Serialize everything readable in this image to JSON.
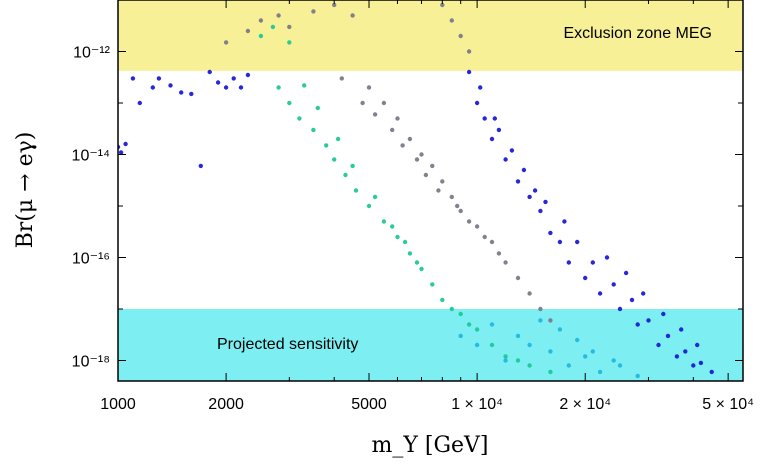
{
  "chart_data": {
    "type": "scatter",
    "x_scale": "log",
    "y_scale": "log",
    "xlim": [
      1000,
      55000
    ],
    "ylim": [
      4e-19,
      1e-11
    ],
    "xlabel": "m_Y [GeV]",
    "ylabel": "Br(μ → eγ)",
    "x_ticks": [
      {
        "value": 1000,
        "label": "1000"
      },
      {
        "value": 2000,
        "label": "2000"
      },
      {
        "value": 5000,
        "label": "5000"
      },
      {
        "value": 10000,
        "label": "1 × 10⁴"
      },
      {
        "value": 20000,
        "label": "2 × 10⁴"
      },
      {
        "value": 50000,
        "label": "5 × 10⁴"
      }
    ],
    "y_ticks": [
      {
        "value": 1e-12,
        "label": "10⁻¹²"
      },
      {
        "value": 1e-14,
        "label": "10⁻¹⁴"
      },
      {
        "value": 1e-16,
        "label": "10⁻¹⁶"
      },
      {
        "value": 1e-18,
        "label": "10⁻¹⁸"
      }
    ],
    "bands": [
      {
        "label": "Exclusion zone MEG",
        "ymin": 4.2e-13,
        "ymax": 1e-11,
        "color": "#f0e442",
        "opacity": 0.55
      },
      {
        "label": "Projected sensitivity",
        "ymin": 4e-19,
        "ymax": 1e-17,
        "color": "#26e2e8",
        "opacity": 0.6
      }
    ],
    "series": [
      {
        "color": "#1c1cd6",
        "points": [
          [
            1000,
            1.4e-14
          ],
          [
            1020,
            1.1e-14
          ],
          [
            1050,
            1.6e-14
          ],
          [
            1100,
            3e-13
          ],
          [
            1150,
            1e-13
          ],
          [
            1250,
            2e-13
          ],
          [
            1300,
            3e-13
          ],
          [
            1400,
            2.2e-13
          ],
          [
            1500,
            1.6e-13
          ],
          [
            1600,
            1.5e-13
          ],
          [
            1700,
            6e-15
          ],
          [
            1800,
            4e-13
          ],
          [
            1900,
            2.5e-13
          ],
          [
            2000,
            2e-13
          ],
          [
            2100,
            3e-13
          ],
          [
            2200,
            2e-13
          ],
          [
            2300,
            3.5e-13
          ],
          [
            9500,
            4e-13
          ],
          [
            10000,
            1e-13
          ],
          [
            10500,
            5e-14
          ],
          [
            11000,
            2e-14
          ],
          [
            12000,
            8e-15
          ],
          [
            13000,
            3e-15
          ],
          [
            14000,
            1.5e-15
          ],
          [
            15000,
            8e-16
          ],
          [
            16000,
            3e-16
          ],
          [
            17000,
            2e-16
          ],
          [
            18000,
            8e-17
          ],
          [
            20000,
            4e-17
          ],
          [
            22000,
            2e-17
          ],
          [
            25000,
            1e-17
          ],
          [
            28000,
            5e-18
          ],
          [
            32000,
            2e-18
          ],
          [
            36000,
            1.2e-18
          ],
          [
            40000,
            8e-19
          ],
          [
            45000,
            6e-19
          ],
          [
            11500,
            3e-14
          ],
          [
            12500,
            1.2e-14
          ],
          [
            13500,
            5e-15
          ],
          [
            15500,
            1.2e-15
          ],
          [
            19000,
            2e-16
          ],
          [
            21000,
            8e-17
          ],
          [
            24000,
            3e-17
          ],
          [
            27000,
            1.5e-17
          ],
          [
            30000,
            6e-18
          ],
          [
            34000,
            3e-18
          ],
          [
            38000,
            1.5e-18
          ],
          [
            42000,
            9e-19
          ],
          [
            10200,
            2e-13
          ],
          [
            11200,
            5e-14
          ],
          [
            14500,
            2e-15
          ],
          [
            17500,
            5e-16
          ],
          [
            23000,
            1e-16
          ],
          [
            26000,
            5e-17
          ],
          [
            29000,
            2e-17
          ],
          [
            33000,
            8e-18
          ],
          [
            37000,
            4e-18
          ],
          [
            41000,
            2e-18
          ]
        ]
      },
      {
        "color": "#7a7a8a",
        "points": [
          [
            2000,
            1.5e-12
          ],
          [
            2300,
            2.5e-12
          ],
          [
            2500,
            4e-12
          ],
          [
            2800,
            5e-12
          ],
          [
            3000,
            3e-12
          ],
          [
            3500,
            6e-12
          ],
          [
            4000,
            8e-12
          ],
          [
            4500,
            5e-12
          ],
          [
            5000,
            2e-13
          ],
          [
            5500,
            1e-13
          ],
          [
            6000,
            5e-14
          ],
          [
            6500,
            2e-14
          ],
          [
            7000,
            1e-14
          ],
          [
            7500,
            6e-15
          ],
          [
            8000,
            3e-15
          ],
          [
            8500,
            1.5e-15
          ],
          [
            9000,
            8e-16
          ],
          [
            10000,
            4e-16
          ],
          [
            11000,
            2e-16
          ],
          [
            12000,
            8e-17
          ],
          [
            13000,
            4e-17
          ],
          [
            14000,
            2e-17
          ],
          [
            15000,
            1e-17
          ],
          [
            16000,
            6e-18
          ],
          [
            8000,
            8e-12
          ],
          [
            8500,
            4e-12
          ],
          [
            9000,
            2e-12
          ],
          [
            9500,
            1e-12
          ],
          [
            4200,
            3e-13
          ],
          [
            4800,
            1e-13
          ],
          [
            5200,
            6e-14
          ],
          [
            5800,
            3e-14
          ],
          [
            6200,
            1.5e-14
          ],
          [
            6800,
            8e-15
          ],
          [
            7200,
            4e-15
          ],
          [
            7800,
            2e-15
          ],
          [
            8800,
            1e-15
          ],
          [
            9500,
            5e-16
          ],
          [
            10500,
            2.5e-16
          ],
          [
            11500,
            1.2e-16
          ]
        ]
      },
      {
        "color": "#1ec898",
        "points": [
          [
            2800,
            2e-13
          ],
          [
            3000,
            1e-13
          ],
          [
            3200,
            5e-14
          ],
          [
            3500,
            3e-14
          ],
          [
            3800,
            1.5e-14
          ],
          [
            4000,
            8e-15
          ],
          [
            4300,
            4e-15
          ],
          [
            4600,
            2e-15
          ],
          [
            5000,
            1e-15
          ],
          [
            5500,
            5e-16
          ],
          [
            6000,
            2.5e-16
          ],
          [
            6500,
            1.2e-16
          ],
          [
            7000,
            6e-17
          ],
          [
            7500,
            3e-17
          ],
          [
            8000,
            1.5e-17
          ],
          [
            9000,
            8e-18
          ],
          [
            10000,
            4e-18
          ],
          [
            11000,
            2e-18
          ],
          [
            12000,
            1.2e-18
          ],
          [
            14000,
            8e-19
          ],
          [
            16000,
            6e-19
          ],
          [
            2500,
            2e-12
          ],
          [
            2700,
            3e-12
          ],
          [
            3000,
            1.5e-12
          ],
          [
            3300,
            2.2e-13
          ],
          [
            3600,
            8e-14
          ],
          [
            4100,
            2e-14
          ],
          [
            4500,
            6e-15
          ],
          [
            5200,
            1.5e-15
          ],
          [
            5800,
            4e-16
          ],
          [
            6300,
            2e-16
          ],
          [
            6800,
            8e-17
          ],
          [
            8500,
            1e-17
          ],
          [
            9500,
            5e-18
          ],
          [
            13000,
            1e-18
          ]
        ]
      },
      {
        "color": "#20b8e0",
        "points": [
          [
            9000,
            3e-18
          ],
          [
            10000,
            2e-18
          ],
          [
            12000,
            1e-18
          ],
          [
            14000,
            2e-18
          ],
          [
            16000,
            1.5e-18
          ],
          [
            18000,
            8e-19
          ],
          [
            20000,
            1.2e-18
          ],
          [
            22000,
            6e-19
          ],
          [
            25000,
            8e-19
          ],
          [
            28000,
            5e-19
          ],
          [
            11000,
            5e-18
          ],
          [
            13000,
            3e-18
          ],
          [
            15000,
            6e-18
          ],
          [
            17000,
            4e-18
          ],
          [
            19000,
            2.5e-18
          ],
          [
            21000,
            1.5e-18
          ],
          [
            24000,
            1e-18
          ]
        ]
      }
    ]
  }
}
